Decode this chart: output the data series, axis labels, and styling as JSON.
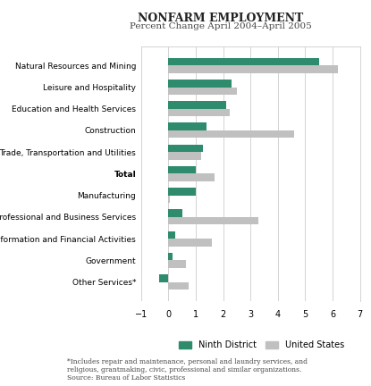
{
  "title": "NONFARM EMPLOYMENT",
  "subtitle": "Percent Change April 2004–April 2005",
  "categories": [
    "Natural Resources and Mining",
    "Leisure and Hospitality",
    "Education and Health Services",
    "Construction",
    "Trade, Transportation and Utilities",
    "Total",
    "Manufacturing",
    "Professional and Business Services",
    "Information and Financial Activities",
    "Government",
    "Other Services*"
  ],
  "ninth_district": [
    5.5,
    2.3,
    2.1,
    1.4,
    1.25,
    1.0,
    1.0,
    0.5,
    0.25,
    0.15,
    -0.35
  ],
  "united_states": [
    6.2,
    2.5,
    2.25,
    4.6,
    1.2,
    1.7,
    0.05,
    3.3,
    1.6,
    0.65,
    0.75
  ],
  "ninth_color": "#2e8b6e",
  "us_color": "#c0c0c0",
  "xlim": [
    -1,
    7
  ],
  "xticks": [
    -1,
    0,
    1,
    2,
    3,
    4,
    5,
    6,
    7
  ],
  "footnote": "*Includes repair and maintenance, personal and laundry services, and\nreligious, grantmaking, civic, professional and similar organizations.\nSource: Bureau of Labor Statistics",
  "bold_index": 5
}
